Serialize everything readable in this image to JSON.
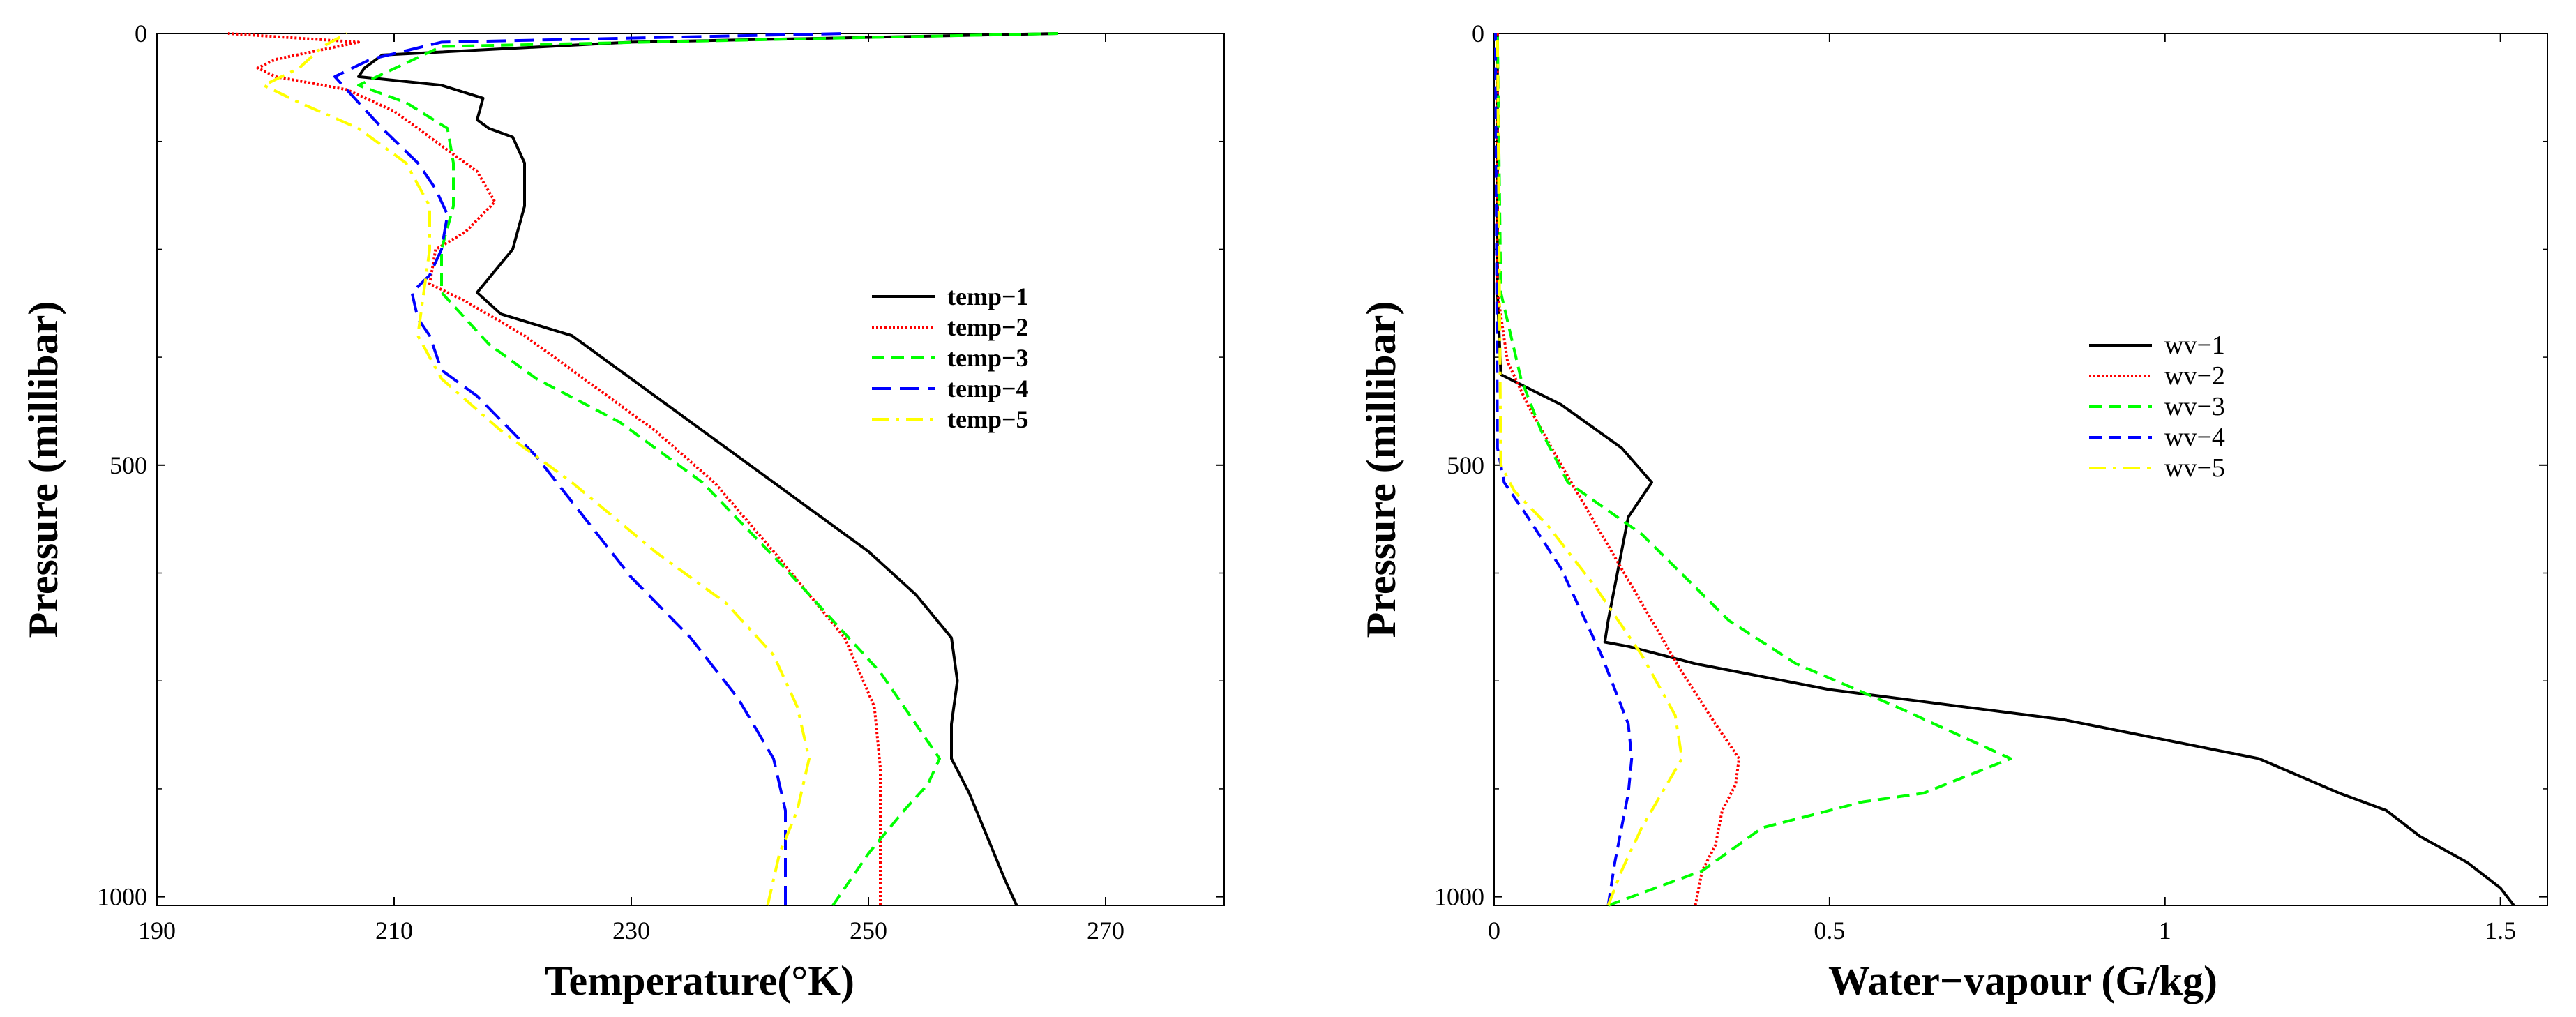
{
  "chart_data": [
    {
      "type": "line",
      "id": "temperature",
      "xlabel": "Temperature(°K)",
      "ylabel": "Pressure (millibar)",
      "xlim": [
        190,
        280
      ],
      "ylim": [
        1010,
        0
      ],
      "xticks": [
        190,
        210,
        230,
        250,
        270
      ],
      "yticks": [
        0,
        500,
        1000
      ],
      "legend_position": "right-middle",
      "legend_bold": true,
      "series": [
        {
          "name": "temp-1",
          "color": "#000000",
          "dash": "solid",
          "x": [
            262.5,
            261.5,
            260,
            258.5,
            257,
            257,
            257.5,
            257,
            254,
            250,
            245,
            240,
            235,
            230,
            225,
            219,
            217,
            220,
            221,
            221,
            220,
            218,
            217,
            217.5,
            214,
            207,
            207.5,
            209,
            230,
            266
          ],
          "y": [
            1010,
            980,
            930,
            880,
            840,
            800,
            750,
            700,
            650,
            600,
            550,
            500,
            450,
            400,
            350,
            325,
            300,
            250,
            200,
            150,
            120,
            110,
            100,
            75,
            60,
            50,
            40,
            25,
            10,
            0
          ]
        },
        {
          "name": "temp-2",
          "color": "#ff0000",
          "dash": "dotted",
          "x": [
            251,
            251,
            251,
            250.5,
            248,
            245,
            242,
            237,
            232,
            226,
            221,
            216,
            213,
            213.5,
            216,
            218.5,
            217,
            213,
            210,
            206,
            200,
            198.5,
            200,
            207,
            196
          ],
          "y": [
            1010,
            950,
            850,
            780,
            700,
            650,
            600,
            520,
            460,
            400,
            350,
            310,
            290,
            250,
            230,
            195,
            160,
            120,
            90,
            65,
            50,
            40,
            30,
            10,
            0
          ]
        },
        {
          "name": "temp-3",
          "color": "#00ff00",
          "dash": "dashed",
          "x": [
            247,
            250,
            253,
            255,
            256,
            254,
            251,
            247,
            243,
            236,
            229,
            222,
            218,
            214,
            214,
            215,
            215,
            214.5,
            211,
            207,
            214,
            266
          ],
          "y": [
            1010,
            950,
            900,
            870,
            840,
            800,
            740,
            680,
            620,
            520,
            450,
            400,
            360,
            300,
            250,
            200,
            150,
            110,
            80,
            60,
            15,
            0
          ]
        },
        {
          "name": "temp-4",
          "color": "#0000ff",
          "dash": "longdash",
          "x": [
            243,
            243,
            243,
            242,
            239,
            235,
            230,
            226,
            222,
            217,
            214,
            213,
            212,
            211.5,
            213,
            214,
            214.5,
            213.5,
            212,
            209,
            207,
            205,
            208,
            214,
            248
          ],
          "y": [
            1010,
            950,
            900,
            840,
            770,
            700,
            630,
            560,
            490,
            420,
            390,
            350,
            330,
            300,
            280,
            250,
            210,
            180,
            150,
            110,
            80,
            50,
            30,
            10,
            0
          ]
        },
        {
          "name": "temp-5",
          "color": "#ffff00",
          "dash": "dashdot",
          "x": [
            241.5,
            242.5,
            244,
            245,
            244,
            242,
            238,
            232,
            225,
            219,
            214,
            212,
            212.5,
            213,
            213,
            211,
            207,
            202,
            199,
            202,
            204,
            206
          ],
          "y": [
            1010,
            950,
            900,
            840,
            780,
            720,
            660,
            600,
            520,
            460,
            400,
            350,
            300,
            250,
            200,
            150,
            110,
            80,
            60,
            40,
            15,
            0
          ]
        }
      ]
    },
    {
      "type": "line",
      "id": "water-vapour",
      "xlabel": "Water−vapour (G/kg)",
      "ylabel": "Pressure (millibar)",
      "xlim": [
        0,
        1.57
      ],
      "ylim": [
        1010,
        0
      ],
      "xticks": [
        0,
        0.5,
        1,
        1.5
      ],
      "yticks": [
        0,
        500,
        1000
      ],
      "legend_position": "right-middle",
      "legend_bold": false,
      "series": [
        {
          "name": "wv-1",
          "color": "#000000",
          "dash": "solid",
          "x": [
            1.52,
            1.5,
            1.45,
            1.38,
            1.33,
            1.26,
            1.14,
            0.85,
            0.5,
            0.3,
            0.2,
            0.165,
            0.17,
            0.18,
            0.19,
            0.2,
            0.235,
            0.19,
            0.1,
            0.01,
            0.005,
            0.005
          ],
          "y": [
            1010,
            990,
            960,
            930,
            900,
            880,
            840,
            795,
            760,
            730,
            710,
            705,
            680,
            640,
            600,
            560,
            520,
            480,
            430,
            395,
            300,
            0
          ]
        },
        {
          "name": "wv-2",
          "color": "#ff0000",
          "dash": "dotted",
          "x": [
            0.3,
            0.31,
            0.33,
            0.34,
            0.36,
            0.365,
            0.33,
            0.28,
            0.22,
            0.16,
            0.1,
            0.05,
            0.02,
            0.005,
            0.005
          ],
          "y": [
            1010,
            970,
            940,
            900,
            870,
            840,
            800,
            740,
            660,
            580,
            500,
            430,
            380,
            300,
            0
          ]
        },
        {
          "name": "wv-3",
          "color": "#00ff00",
          "dash": "dashed",
          "x": [
            0.17,
            0.24,
            0.31,
            0.4,
            0.55,
            0.64,
            0.77,
            0.6,
            0.45,
            0.35,
            0.22,
            0.11,
            0.07,
            0.04,
            0.01,
            0.005
          ],
          "y": [
            1010,
            990,
            970,
            920,
            890,
            880,
            840,
            780,
            730,
            680,
            580,
            520,
            460,
            400,
            300,
            0
          ]
        },
        {
          "name": "wv-4",
          "color": "#0000ff",
          "dash": "dashed",
          "x": [
            0.17,
            0.18,
            0.19,
            0.2,
            0.205,
            0.2,
            0.16,
            0.1,
            0.05,
            0.015,
            0.005,
            0.002
          ],
          "y": [
            1010,
            960,
            920,
            880,
            840,
            800,
            720,
            620,
            560,
            520,
            480,
            0
          ]
        },
        {
          "name": "wv-5",
          "color": "#ffff00",
          "dash": "dashdot",
          "x": [
            0.17,
            0.19,
            0.22,
            0.25,
            0.28,
            0.27,
            0.22,
            0.15,
            0.08,
            0.03,
            0.01,
            0.005
          ],
          "y": [
            1010,
            970,
            920,
            880,
            840,
            790,
            720,
            640,
            570,
            530,
            500,
            0
          ]
        }
      ]
    }
  ]
}
